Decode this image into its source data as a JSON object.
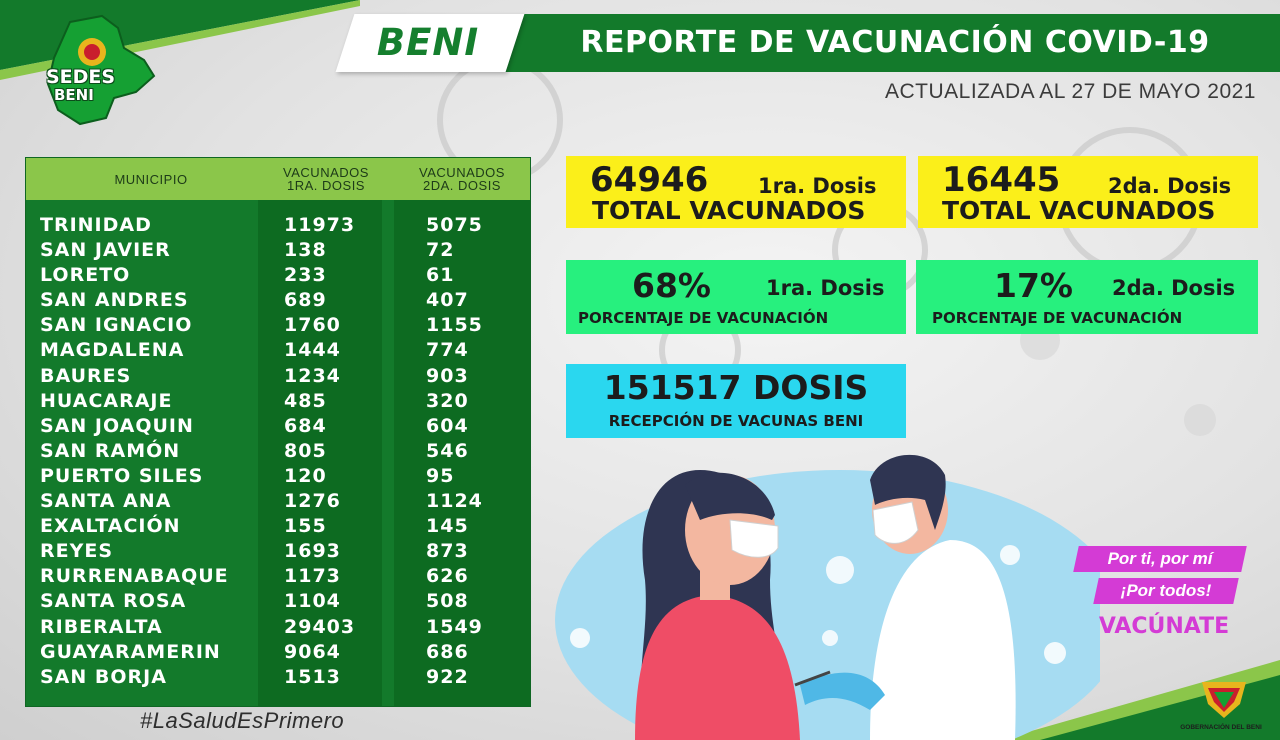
{
  "header": {
    "region": "BENI",
    "title": "REPORTE DE VACUNACIÓN COVID-19",
    "updated": "ACTUALIZADA AL 27 DE MAYO 2021"
  },
  "logo": {
    "line1": "SEDES",
    "line2": "BENI"
  },
  "table": {
    "headers": {
      "municipio": "MUNICIPIO",
      "dose1_line1": "VACUNADOS",
      "dose1_line2": "1RA. DOSIS",
      "dose2_line1": "VACUNADOS",
      "dose2_line2": "2DA. DOSIS"
    },
    "rows": [
      {
        "municipio": "TRINIDAD",
        "dose1": "11973",
        "dose2": "5075"
      },
      {
        "municipio": "SAN JAVIER",
        "dose1": "138",
        "dose2": "72"
      },
      {
        "municipio": "LORETO",
        "dose1": "233",
        "dose2": "61"
      },
      {
        "municipio": "SAN ANDRES",
        "dose1": "689",
        "dose2": "407"
      },
      {
        "municipio": "SAN IGNACIO",
        "dose1": "1760",
        "dose2": "1155"
      },
      {
        "municipio": "MAGDALENA",
        "dose1": "1444",
        "dose2": "774"
      },
      {
        "municipio": "BAURES",
        "dose1": "1234",
        "dose2": "903"
      },
      {
        "municipio": "HUACARAJE",
        "dose1": "485",
        "dose2": "320"
      },
      {
        "municipio": "SAN JOAQUIN",
        "dose1": "684",
        "dose2": "604"
      },
      {
        "municipio": "SAN RAMÓN",
        "dose1": "805",
        "dose2": "546"
      },
      {
        "municipio": "PUERTO SILES",
        "dose1": "120",
        "dose2": "95"
      },
      {
        "municipio": "SANTA ANA",
        "dose1": "1276",
        "dose2": "1124"
      },
      {
        "municipio": "EXALTACIÓN",
        "dose1": "155",
        "dose2": "145"
      },
      {
        "municipio": "REYES",
        "dose1": "1693",
        "dose2": "873"
      },
      {
        "municipio": "RURRENABAQUE",
        "dose1": "1173",
        "dose2": "626"
      },
      {
        "municipio": "SANTA ROSA",
        "dose1": "1104",
        "dose2": "508"
      },
      {
        "municipio": "RIBERALTA",
        "dose1": "29403",
        "dose2": "1549"
      },
      {
        "municipio": "GUAYARAMERIN",
        "dose1": "9064",
        "dose2": "686"
      },
      {
        "municipio": "SAN BORJA",
        "dose1": "1513",
        "dose2": "922"
      }
    ]
  },
  "stats": {
    "total1": {
      "number": "64946",
      "dose": "1ra. Dosis",
      "label": "TOTAL VACUNADOS"
    },
    "total2": {
      "number": "16445",
      "dose": "2da. Dosis",
      "label": "TOTAL VACUNADOS"
    },
    "pct1": {
      "number": "68%",
      "dose": "1ra. Dosis",
      "label": "PORCENTAJE DE VACUNACIÓN"
    },
    "pct2": {
      "number": "17%",
      "dose": "2da. Dosis",
      "label": "PORCENTAJE DE VACUNACIÓN"
    },
    "received": {
      "number": "151517 DOSIS",
      "label": "RECEPCIÓN DE VACUNAS BENI"
    }
  },
  "slogan": {
    "line1": "Por ti, por mí",
    "line2": "¡Por todos!",
    "cta": "VACÚNATE"
  },
  "hashtag": "#LaSaludEsPrimero",
  "footer_logo": "GOBERNACIÓN DEL BENI",
  "colors": {
    "green_dark": "#137a2b",
    "green_light": "#8bc64a",
    "yellow": "#fbef1a",
    "mint": "#27f07e",
    "cyan": "#2ad7ef",
    "magenta": "#d43bd5"
  }
}
